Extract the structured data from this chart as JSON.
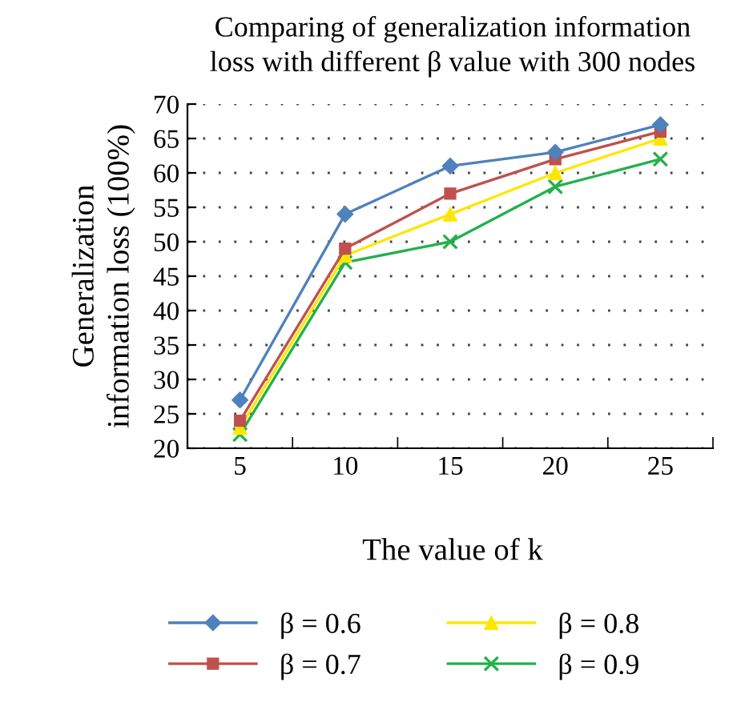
{
  "chart_data": {
    "type": "line",
    "title": "Comparing of generalization information\nloss with different β value with 300 nodes",
    "xlabel": "The value of k",
    "ylabel": "Generalization\ninformation loss (100%)",
    "categories": [
      "5",
      "10",
      "15",
      "20",
      "25"
    ],
    "series": [
      {
        "name": "β = 0.6",
        "color": "#4f81bd",
        "marker": "diamond",
        "values": [
          27,
          54,
          61,
          63,
          67
        ]
      },
      {
        "name": "β = 0.7",
        "color": "#c0504d",
        "marker": "square",
        "values": [
          24,
          49,
          57,
          62,
          66
        ]
      },
      {
        "name": "β = 0.8",
        "color": "#ffe600",
        "marker": "triangle",
        "values": [
          23,
          48,
          54,
          60,
          65
        ]
      },
      {
        "name": "β = 0.9",
        "color": "#22b14c",
        "marker": "cross",
        "values": [
          22,
          47,
          50,
          58,
          62
        ]
      }
    ],
    "ylim": [
      20,
      70
    ],
    "yticks": [
      20,
      25,
      30,
      35,
      40,
      45,
      50,
      55,
      60,
      65,
      70
    ],
    "grid": "y",
    "legend": "bottom"
  }
}
